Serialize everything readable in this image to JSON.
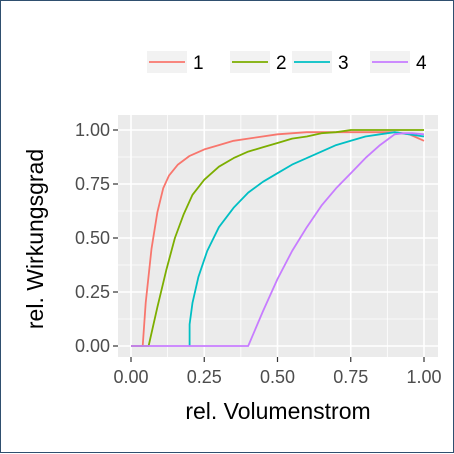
{
  "chart_data": {
    "type": "line",
    "title": "",
    "xlabel": "rel. Volumenstrom",
    "ylabel": "rel. Wirkungsgrad",
    "xlim": [
      0,
      1
    ],
    "ylim": [
      0,
      1
    ],
    "x_ticks": [
      "0.00",
      "0.25",
      "0.50",
      "0.75",
      "1.00"
    ],
    "y_ticks": [
      "0.00",
      "0.25",
      "0.50",
      "0.75",
      "1.00"
    ],
    "grid": true,
    "legend_position": "top",
    "panel_background": "#ebebeb",
    "series": [
      {
        "name": "1",
        "color": "#F8766D",
        "x": [
          0.0,
          0.04,
          0.05,
          0.07,
          0.09,
          0.11,
          0.13,
          0.16,
          0.2,
          0.25,
          0.3,
          0.35,
          0.4,
          0.5,
          0.6,
          0.7,
          0.8,
          0.9,
          0.95,
          1.0
        ],
        "y": [
          0.0,
          0.0,
          0.2,
          0.45,
          0.62,
          0.73,
          0.79,
          0.84,
          0.88,
          0.91,
          0.93,
          0.95,
          0.96,
          0.98,
          0.99,
          0.99,
          0.99,
          0.99,
          0.98,
          0.95
        ]
      },
      {
        "name": "2",
        "color": "#7CAE00",
        "x": [
          0.0,
          0.06,
          0.09,
          0.12,
          0.15,
          0.18,
          0.21,
          0.25,
          0.3,
          0.35,
          0.4,
          0.45,
          0.5,
          0.55,
          0.6,
          0.65,
          0.7,
          0.75,
          0.8,
          1.0
        ],
        "y": [
          0.0,
          0.0,
          0.18,
          0.35,
          0.5,
          0.61,
          0.7,
          0.77,
          0.83,
          0.87,
          0.9,
          0.92,
          0.94,
          0.96,
          0.97,
          0.985,
          0.99,
          1.0,
          1.0,
          1.0
        ]
      },
      {
        "name": "3",
        "color": "#00BFC4",
        "x": [
          0.2,
          0.2,
          0.21,
          0.23,
          0.26,
          0.3,
          0.35,
          0.4,
          0.45,
          0.5,
          0.55,
          0.6,
          0.65,
          0.7,
          0.75,
          0.8,
          0.85,
          0.9,
          0.95,
          1.0
        ],
        "y": [
          0.0,
          0.1,
          0.2,
          0.32,
          0.44,
          0.55,
          0.64,
          0.71,
          0.76,
          0.8,
          0.84,
          0.87,
          0.9,
          0.93,
          0.95,
          0.97,
          0.98,
          0.99,
          0.98,
          0.97
        ]
      },
      {
        "name": "4",
        "color": "#C77CFF",
        "x": [
          0.0,
          0.4,
          0.45,
          0.5,
          0.55,
          0.6,
          0.65,
          0.7,
          0.75,
          0.8,
          0.85,
          0.88,
          0.9,
          0.93,
          0.96,
          1.0
        ],
        "y": [
          0.0,
          0.0,
          0.16,
          0.31,
          0.44,
          0.55,
          0.65,
          0.73,
          0.8,
          0.87,
          0.93,
          0.96,
          0.98,
          0.985,
          0.985,
          0.98
        ]
      }
    ]
  }
}
